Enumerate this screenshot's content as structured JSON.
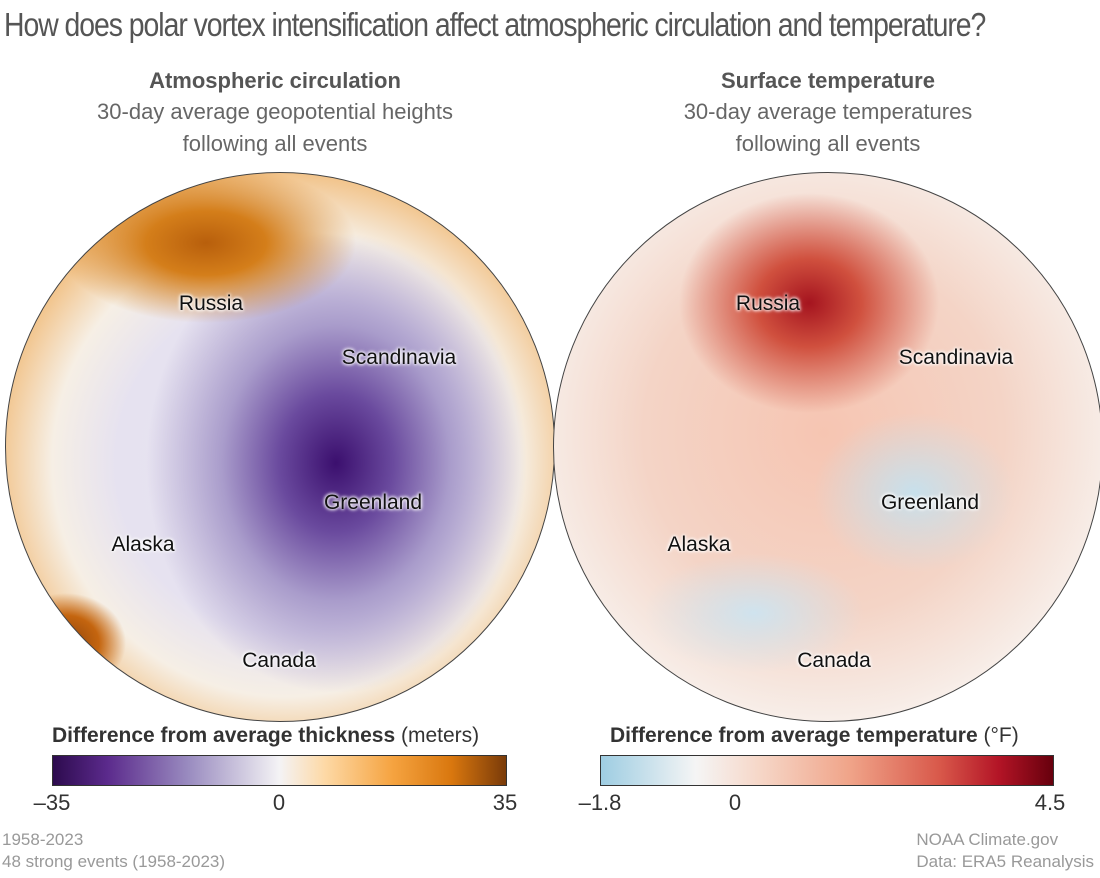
{
  "title": "How does polar vortex intensification affect atmospheric circulation and temperature?",
  "panels": [
    {
      "title": "Atmospheric circulation",
      "subtitle_1": "30-day average geopotential heights",
      "subtitle_2": "following all events",
      "labels": {
        "russia": "Russia",
        "scandinavia": "Scandinavia",
        "greenland": "Greenland",
        "alaska": "Alaska",
        "canada": "Canada"
      },
      "colorbar": {
        "title_bold": "Difference from average thickness",
        "unit": "(meters)",
        "min": "–35",
        "mid": "0",
        "max": "35",
        "colors": [
          "#2d0b4e",
          "#f4f3f5",
          "#7a3b09"
        ]
      }
    },
    {
      "title": "Surface temperature",
      "subtitle_1": "30-day average temperatures",
      "subtitle_2": "following all events",
      "labels": {
        "russia": "Russia",
        "scandinavia": "Scandinavia",
        "greenland": "Greenland",
        "alaska": "Alaska",
        "canada": "Canada"
      },
      "colorbar": {
        "title_bold": "Difference from average temperature",
        "unit": "(°F)",
        "min": "–1.8",
        "mid": "0",
        "max": "4.5",
        "colors": [
          "#9ecde2",
          "#f5f5f5",
          "#67000d"
        ]
      }
    }
  ],
  "footer": {
    "period": "1958-2023",
    "events": "48 strong events (1958-2023)",
    "source": "NOAA Climate.gov",
    "data": "Data: ERA5 Reanalysis"
  }
}
